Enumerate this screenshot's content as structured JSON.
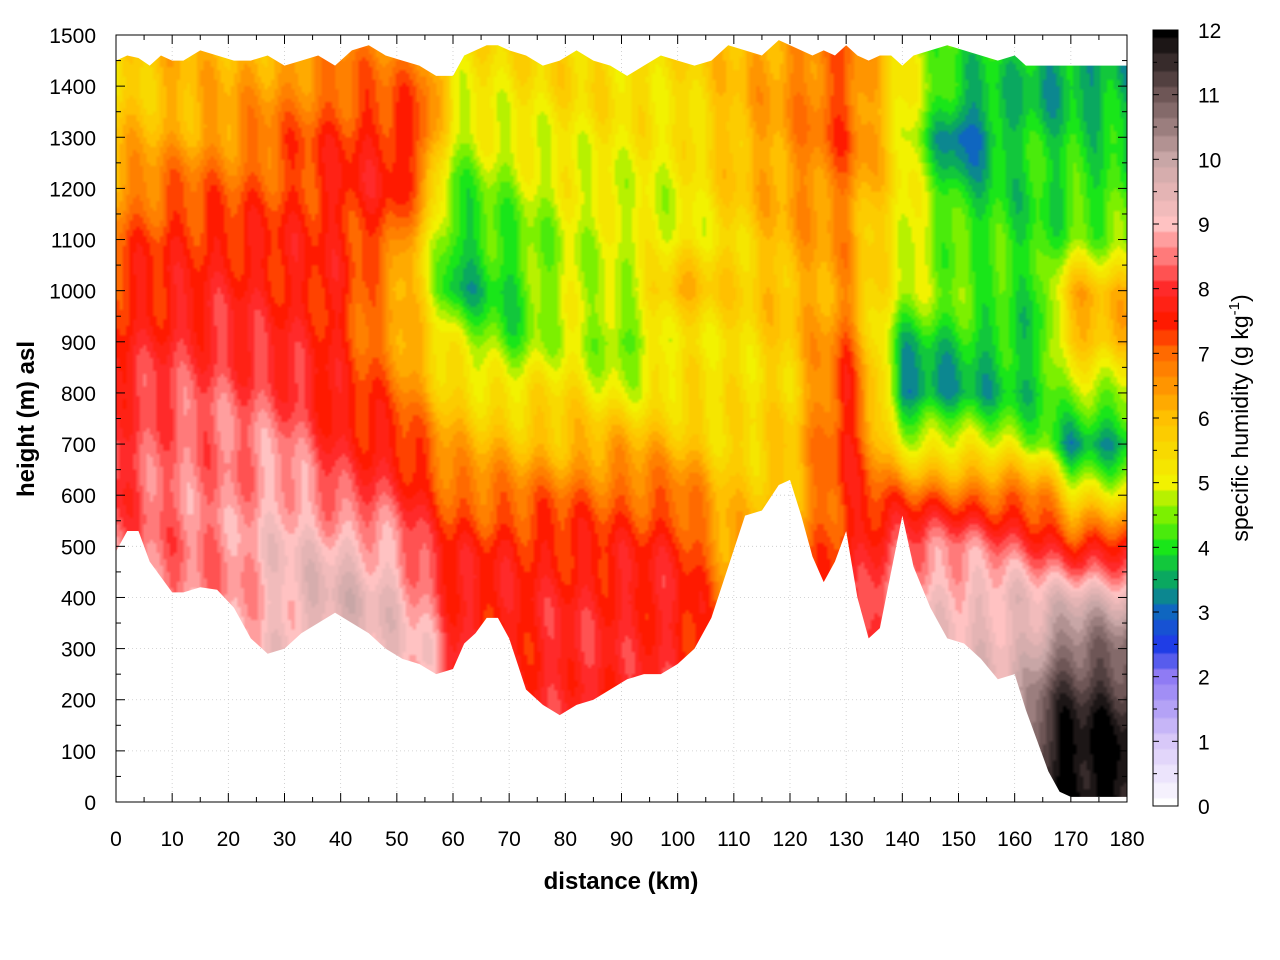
{
  "chart_data": {
    "type": "heatmap",
    "title": "",
    "xlabel": "distance (km)",
    "ylabel": "height (m) asl",
    "xlim": [
      0,
      180
    ],
    "ylim": [
      0,
      1500
    ],
    "x_ticks": [
      "0",
      "10",
      "20",
      "30",
      "40",
      "50",
      "60",
      "70",
      "80",
      "90",
      "100",
      "110",
      "120",
      "130",
      "140",
      "150",
      "160",
      "170",
      "180"
    ],
    "y_ticks": [
      "0",
      "100",
      "200",
      "300",
      "400",
      "500",
      "600",
      "700",
      "800",
      "900",
      "1000",
      "1100",
      "1200",
      "1300",
      "1400",
      "1500"
    ],
    "grid": true,
    "colorbar": {
      "label_main": "specific humidity (g kg",
      "label_sup": "-1",
      "label_end": ")",
      "range": [
        0,
        12
      ],
      "ticks": [
        "0",
        "1",
        "2",
        "3",
        "4",
        "5",
        "6",
        "7",
        "8",
        "9",
        "10",
        "11",
        "12"
      ],
      "stops": [
        {
          "value": 0,
          "color": "#ffffff"
        },
        {
          "value": 1,
          "color": "#d8c8f8"
        },
        {
          "value": 2,
          "color": "#8f7bf4"
        },
        {
          "value": 2.5,
          "color": "#1f3de6"
        },
        {
          "value": 3,
          "color": "#0f66c0"
        },
        {
          "value": 3.5,
          "color": "#0aa860"
        },
        {
          "value": 4,
          "color": "#19e619"
        },
        {
          "value": 4.5,
          "color": "#7cf000"
        },
        {
          "value": 5,
          "color": "#f2f200"
        },
        {
          "value": 6,
          "color": "#ffc000"
        },
        {
          "value": 7,
          "color": "#ff6a00"
        },
        {
          "value": 7.5,
          "color": "#ff1a00"
        },
        {
          "value": 8,
          "color": "#ff2a2a"
        },
        {
          "value": 8.5,
          "color": "#ff7a7a"
        },
        {
          "value": 9,
          "color": "#ffc2c2"
        },
        {
          "value": 10,
          "color": "#c8a6a6"
        },
        {
          "value": 11,
          "color": "#6e5656"
        },
        {
          "value": 12,
          "color": "#000000"
        }
      ]
    },
    "terrain": {
      "distance_km": [
        0,
        2,
        4,
        6,
        8,
        10,
        12,
        15,
        18,
        21,
        24,
        27,
        30,
        33,
        36,
        39,
        42,
        45,
        48,
        51,
        54,
        57,
        60,
        62,
        64,
        66,
        68,
        70,
        73,
        76,
        79,
        82,
        85,
        88,
        91,
        94,
        97,
        100,
        103,
        106,
        109,
        112,
        115,
        118,
        120,
        122,
        124,
        126,
        128,
        130,
        132,
        134,
        136,
        138,
        140,
        142,
        145,
        148,
        151,
        154,
        157,
        160,
        162,
        164,
        166,
        168,
        170,
        175,
        180
      ],
      "surface_height_m": [
        490,
        530,
        530,
        470,
        440,
        410,
        410,
        420,
        415,
        380,
        320,
        290,
        300,
        330,
        350,
        370,
        350,
        330,
        300,
        280,
        270,
        250,
        260,
        310,
        330,
        360,
        360,
        320,
        220,
        190,
        170,
        190,
        200,
        220,
        240,
        250,
        250,
        270,
        300,
        360,
        460,
        560,
        570,
        620,
        630,
        560,
        480,
        430,
        470,
        530,
        400,
        320,
        340,
        450,
        560,
        460,
        380,
        320,
        310,
        280,
        240,
        250,
        180,
        120,
        60,
        20,
        10,
        10,
        10
      ]
    },
    "data_top_m": [
      1450,
      1460,
      1455,
      1440,
      1460,
      1450,
      1450,
      1470,
      1460,
      1450,
      1450,
      1460,
      1440,
      1450,
      1460,
      1440,
      1470,
      1480,
      1460,
      1450,
      1440,
      1420,
      1420,
      1460,
      1470,
      1480,
      1480,
      1470,
      1460,
      1440,
      1450,
      1470,
      1450,
      1440,
      1420,
      1440,
      1460,
      1450,
      1440,
      1450,
      1480,
      1470,
      1460,
      1490,
      1480,
      1470,
      1460,
      1470,
      1460,
      1480,
      1460,
      1450,
      1460,
      1460,
      1440,
      1460,
      1470,
      1480,
      1470,
      1460,
      1450,
      1460,
      1440,
      1440,
      1440,
      1440,
      1440,
      1440,
      1440
    ],
    "humidity_field": {
      "height_levels_m": [
        0,
        100,
        200,
        300,
        400,
        500,
        600,
        700,
        800,
        900,
        1000,
        1100,
        1200,
        1300,
        1400,
        1500
      ],
      "columns": [
        {
          "distance_km": 0,
          "values_g_per_kg": [
            8.5,
            8.5,
            8.5,
            8.5,
            8.5,
            8.5,
            8.0,
            8.0,
            8.0,
            7.5,
            7.5,
            7.0,
            6.5,
            6.0,
            5.5,
            5.5
          ]
        },
        {
          "distance_km": 10,
          "values_g_per_kg": [
            8.5,
            8.5,
            8.5,
            8.5,
            8.5,
            8.5,
            8.5,
            8.5,
            8.2,
            8.0,
            7.5,
            7.5,
            7.0,
            6.2,
            6.0,
            6.0
          ]
        },
        {
          "distance_km": 20,
          "values_g_per_kg": [
            8.6,
            8.6,
            8.6,
            8.6,
            8.6,
            8.6,
            8.5,
            8.5,
            8.3,
            8.0,
            7.8,
            7.5,
            7.0,
            6.5,
            6.2,
            6.0
          ]
        },
        {
          "distance_km": 30,
          "values_g_per_kg": [
            9.2,
            9.2,
            9.2,
            9.2,
            9.2,
            9.2,
            9.0,
            8.6,
            8.2,
            7.8,
            7.6,
            7.5,
            7.2,
            7.0,
            6.5,
            6.2
          ]
        },
        {
          "distance_km": 40,
          "values_g_per_kg": [
            9.6,
            9.6,
            9.6,
            9.6,
            9.6,
            9.2,
            8.2,
            7.8,
            7.5,
            7.5,
            7.5,
            7.5,
            7.6,
            7.4,
            7.0,
            6.5
          ]
        },
        {
          "distance_km": 50,
          "values_g_per_kg": [
            9.2,
            9.2,
            9.2,
            9.2,
            9.2,
            8.8,
            8.0,
            7.6,
            7.0,
            6.5,
            6.2,
            7.0,
            7.6,
            7.6,
            7.0,
            6.5
          ]
        },
        {
          "distance_km": 55,
          "values_g_per_kg": [
            9.0,
            9.0,
            9.0,
            9.0,
            8.6,
            8.0,
            7.5,
            7.0,
            6.2,
            5.8,
            5.5,
            5.5,
            6.5,
            7.2,
            7.0,
            6.5
          ]
        },
        {
          "distance_km": 60,
          "values_g_per_kg": [
            8.0,
            8.0,
            8.0,
            8.0,
            7.8,
            7.5,
            7.0,
            6.2,
            5.6,
            5.0,
            3.6,
            3.8,
            4.2,
            4.8,
            5.2,
            5.5
          ]
        },
        {
          "distance_km": 70,
          "values_g_per_kg": [
            7.6,
            7.6,
            7.6,
            7.6,
            7.6,
            7.6,
            6.8,
            6.0,
            5.2,
            4.2,
            3.9,
            4.2,
            4.6,
            5.0,
            5.3,
            5.5
          ]
        },
        {
          "distance_km": 80,
          "values_g_per_kg": [
            8.0,
            8.0,
            8.0,
            8.0,
            7.8,
            7.5,
            7.0,
            6.0,
            5.5,
            5.0,
            4.8,
            4.8,
            5.0,
            5.2,
            5.5,
            5.6
          ]
        },
        {
          "distance_km": 90,
          "values_g_per_kg": [
            7.8,
            7.8,
            7.8,
            7.8,
            7.8,
            7.5,
            7.0,
            6.2,
            5.0,
            4.2,
            4.8,
            4.9,
            5.0,
            5.2,
            5.4,
            5.5
          ]
        },
        {
          "distance_km": 100,
          "values_g_per_kg": [
            7.8,
            7.8,
            7.8,
            7.8,
            7.8,
            7.6,
            7.0,
            6.0,
            5.4,
            5.2,
            6.2,
            5.0,
            5.0,
            5.2,
            5.4,
            5.5
          ]
        },
        {
          "distance_km": 110,
          "values_g_per_kg": [
            7.0,
            7.0,
            7.0,
            7.0,
            6.5,
            6.2,
            5.8,
            5.5,
            5.3,
            5.4,
            5.6,
            5.5,
            5.8,
            6.0,
            6.0,
            6.0
          ]
        },
        {
          "distance_km": 120,
          "values_g_per_kg": [
            6.5,
            6.5,
            6.5,
            6.5,
            6.5,
            6.5,
            6.0,
            5.8,
            5.6,
            5.8,
            6.0,
            6.2,
            6.4,
            6.5,
            6.5,
            6.5
          ]
        },
        {
          "distance_km": 130,
          "values_g_per_kg": [
            7.6,
            7.6,
            7.6,
            7.6,
            7.6,
            7.5,
            7.5,
            7.6,
            7.6,
            7.0,
            6.5,
            6.5,
            6.8,
            7.2,
            7.2,
            7.0
          ]
        },
        {
          "distance_km": 135,
          "values_g_per_kg": [
            8.2,
            8.2,
            8.2,
            8.2,
            8.2,
            8.0,
            7.2,
            6.5,
            6.0,
            5.6,
            5.5,
            5.6,
            6.0,
            6.2,
            6.2,
            6.0
          ]
        },
        {
          "distance_km": 140,
          "values_g_per_kg": [
            9.0,
            9.0,
            9.0,
            9.0,
            9.0,
            8.5,
            7.0,
            5.0,
            3.2,
            3.8,
            4.8,
            5.2,
            5.2,
            5.2,
            5.2,
            5.0
          ]
        },
        {
          "distance_km": 150,
          "values_g_per_kg": [
            9.2,
            9.2,
            9.2,
            9.2,
            9.2,
            8.6,
            7.0,
            5.0,
            3.5,
            3.8,
            4.5,
            4.2,
            3.8,
            2.8,
            3.8,
            4.2
          ]
        },
        {
          "distance_km": 160,
          "values_g_per_kg": [
            9.4,
            9.4,
            9.4,
            9.4,
            9.4,
            8.2,
            7.0,
            4.8,
            3.8,
            3.8,
            4.2,
            4.0,
            4.0,
            3.8,
            3.8,
            4.0
          ]
        },
        {
          "distance_km": 165,
          "values_g_per_kg": [
            11.8,
            11.6,
            11.0,
            10.2,
            9.2,
            8.0,
            6.8,
            4.5,
            3.8,
            4.0,
            4.0,
            4.0,
            4.0,
            3.9,
            3.5,
            3.5
          ]
        },
        {
          "distance_km": 170,
          "values_g_per_kg": [
            12.0,
            12.0,
            11.5,
            10.8,
            9.5,
            7.6,
            5.2,
            3.5,
            4.5,
            6.0,
            6.0,
            4.5,
            4.0,
            4.0,
            3.5,
            3.5
          ]
        },
        {
          "distance_km": 180,
          "values_g_per_kg": [
            12.0,
            12.0,
            11.5,
            10.8,
            9.5,
            7.6,
            5.2,
            3.5,
            4.5,
            6.0,
            6.0,
            4.5,
            4.0,
            4.0,
            3.5,
            3.5
          ]
        }
      ]
    }
  }
}
